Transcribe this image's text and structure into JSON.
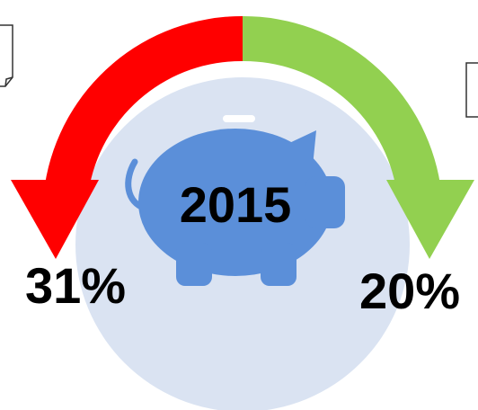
{
  "year": "2015",
  "left": {
    "label": "31%"
  },
  "right": {
    "label": "20%"
  }
}
